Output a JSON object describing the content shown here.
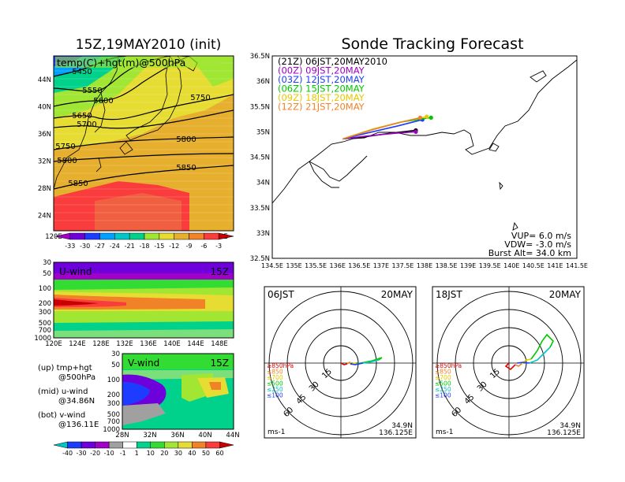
{
  "left_title": "15Z,19MAY2010 (init)",
  "right_title": "Sonde Tracking Forecast",
  "map500": {
    "label": "temp(C)+hgt(m)@500hPa",
    "lat_labels": [
      "44N",
      "40N",
      "36N",
      "32N",
      "28N",
      "24N"
    ],
    "lon_labels": [
      "120E",
      "124E",
      "128E",
      "132E",
      "136E",
      "140E",
      "144E",
      "148E"
    ],
    "contour_labels": [
      "5450",
      "5550",
      "5600",
      "5650",
      "5700",
      "5750",
      "5750",
      "5800",
      "5800",
      "5850",
      "5850"
    ],
    "colorbar_labels": [
      "-33",
      "-30",
      "-27",
      "-24",
      "-21",
      "-18",
      "-15",
      "-12",
      "-9",
      "-6",
      "-3"
    ],
    "colorbar_colors": [
      "#a000c8",
      "#6e00dc",
      "#1e3cff",
      "#00a0ff",
      "#00c8c8",
      "#00d28c",
      "#a0e632",
      "#e6dc32",
      "#e6af2d",
      "#f08228",
      "#fa3c3c",
      "#c80000"
    ]
  },
  "uwind": {
    "label": "U-wind",
    "time": "15Z",
    "p_labels": [
      "30",
      "50",
      "100",
      "200",
      "300",
      "500",
      "700",
      "1000"
    ],
    "lon_labels": [
      "120E",
      "124E",
      "128E",
      "132E",
      "136E",
      "140E",
      "144E",
      "148E"
    ]
  },
  "vwind": {
    "label": "V-wind",
    "time": "15Z",
    "p_labels": [
      "30",
      "50",
      "100",
      "200",
      "300",
      "500",
      "700",
      "1000"
    ],
    "lat_labels": [
      "28N",
      "32N",
      "36N",
      "40N",
      "44N"
    ]
  },
  "notes": {
    "up1": "(up) tmp+hgt",
    "up2": "@500hPa",
    "mid1": "(mid) u-wind",
    "mid2": "@34.86N",
    "bot1": "(bot) v-wind",
    "bot2": "@136.11E"
  },
  "wind_colorbar": {
    "labels": [
      "-40",
      "-30",
      "-20",
      "-10",
      "-1",
      "1",
      "10",
      "20",
      "30",
      "40",
      "50",
      "60"
    ],
    "colors": [
      "#00c8c8",
      "#1e3cff",
      "#6e00dc",
      "#a000c8",
      "#a0a0a0",
      "#ffffff",
      "#00d28c",
      "#32dc32",
      "#a0e632",
      "#e6dc32",
      "#f08228",
      "#fa3c3c",
      "#c80000"
    ]
  },
  "track": {
    "legend": [
      {
        "label": "(21Z)  06JST,20MAY2010",
        "color": "#000000"
      },
      {
        "label": "(00Z)  09JST,20MAY",
        "color": "#a000c8"
      },
      {
        "label": "(03Z)  12JST,20MAY",
        "color": "#1e3cff"
      },
      {
        "label": "(06Z)  15JST,20MAY",
        "color": "#00c800"
      },
      {
        "label": "(09Z)  18JST,20MAY",
        "color": "#e6c800"
      },
      {
        "label": "(12Z)  21JST,20MAY",
        "color": "#f08228"
      }
    ],
    "lat_labels": [
      "36.5N",
      "36N",
      "35.5N",
      "35N",
      "34.5N",
      "34N",
      "33.5N",
      "33N",
      "32.5N"
    ],
    "lon_labels": [
      "134.5E",
      "135E",
      "135.5E",
      "136E",
      "136.5E",
      "137E",
      "137.5E",
      "138E",
      "138.5E",
      "139E",
      "139.5E",
      "140E",
      "140.5E",
      "141E",
      "141.5E"
    ],
    "vup": "VUP=  6.0  m/s",
    "vdw": "VDW= -3.0  m/s",
    "burst": "Burst Alt=  34.0  km"
  },
  "hodo1": {
    "time": "06JST",
    "date": "20MAY",
    "ring_labels": [
      "15",
      "30",
      "45",
      "60"
    ],
    "levels": [
      {
        "label": "≥850hPa",
        "color": "#e60000"
      },
      {
        "label": "≤850",
        "color": "#f08228"
      },
      {
        "label": "≤700",
        "color": "#e6c800"
      },
      {
        "label": "≤500",
        "color": "#00c800"
      },
      {
        "label": "≤250",
        "color": "#00c8c8"
      },
      {
        "label": "≤100",
        "color": "#1e3cff"
      }
    ],
    "units": "ms-1",
    "lat": "34.9N",
    "lon": "136.125E"
  },
  "hodo2": {
    "time": "18JST",
    "date": "20MAY",
    "ring_labels": [
      "15",
      "30",
      "45",
      "60"
    ],
    "levels": [
      {
        "label": "≥850hPa",
        "color": "#e60000"
      },
      {
        "label": "≤850",
        "color": "#f08228"
      },
      {
        "label": "≤700",
        "color": "#e6c800"
      },
      {
        "label": "≤500",
        "color": "#00c800"
      },
      {
        "label": "≤250",
        "color": "#00c8c8"
      },
      {
        "label": "≤100",
        "color": "#1e3cff"
      }
    ],
    "units": "ms-1",
    "lat": "34.9N",
    "lon": "136.125E"
  },
  "chart_data": [
    {
      "type": "line",
      "title": "Sonde Tracking Forecast",
      "xlabel": "",
      "ylabel": "",
      "xlim": [
        134.5,
        141.5
      ],
      "ylim": [
        32.5,
        36.5
      ],
      "series": [
        {
          "name": "(21Z)  06JST,20MAY2010",
          "x": [
            136.12,
            136.6,
            137.2,
            137.8
          ],
          "y": [
            34.86,
            34.9,
            34.97,
            35.03
          ]
        },
        {
          "name": "(00Z)  09JST,20MAY",
          "x": [
            136.12,
            136.7,
            137.3,
            137.8
          ],
          "y": [
            34.86,
            34.92,
            34.97,
            35.0
          ]
        },
        {
          "name": "(03Z)  12JST,20MAY",
          "x": [
            136.12,
            136.7,
            137.4,
            137.95
          ],
          "y": [
            34.86,
            34.98,
            35.12,
            35.24
          ]
        },
        {
          "name": "(06Z)  15JST,20MAY",
          "x": [
            136.12,
            136.8,
            137.5,
            138.15
          ],
          "y": [
            34.86,
            35.05,
            35.2,
            35.28
          ]
        },
        {
          "name": "(09Z)  18JST,20MAY",
          "x": [
            136.12,
            136.8,
            137.5,
            138.05
          ],
          "y": [
            34.86,
            35.05,
            35.2,
            35.3
          ]
        },
        {
          "name": "(12Z)  21JST,20MAY",
          "x": [
            136.12,
            136.8,
            137.4,
            137.9
          ],
          "y": [
            34.86,
            35.04,
            35.18,
            35.28
          ]
        }
      ]
    }
  ]
}
